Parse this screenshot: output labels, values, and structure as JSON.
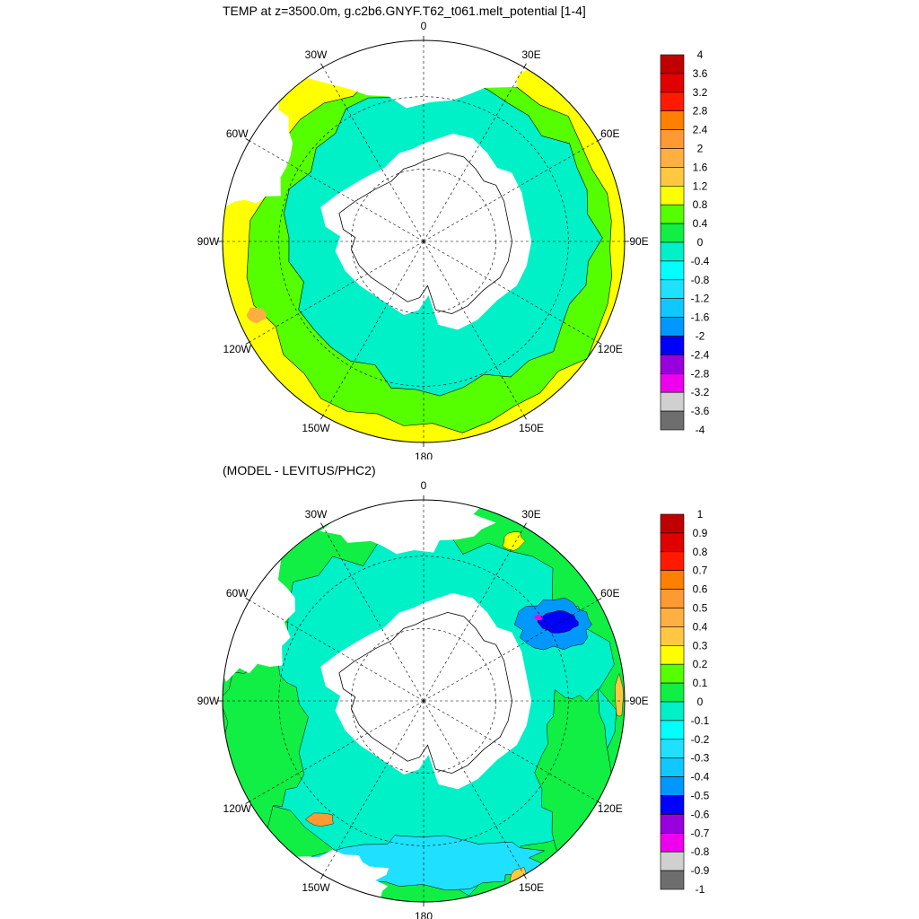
{
  "panels": [
    {
      "title": "TEMP at z=3500.0m, g.c2b6.GNYF.T62_t061.melt_potential [1-4]",
      "lon_labels": [
        "0",
        "30E",
        "60E",
        "90E",
        "120E",
        "150E",
        "180",
        "150W",
        "120W",
        "90W",
        "60W",
        "30W"
      ],
      "colorbar": {
        "labels": [
          "4",
          "3.6",
          "3.2",
          "2.8",
          "2.4",
          "2",
          "1.6",
          "1.2",
          "0.8",
          "0.4",
          "0",
          "-0.4",
          "-0.8",
          "-1.2",
          "-1.6",
          "-2",
          "-2.4",
          "-2.8",
          "-3.2",
          "-3.6",
          "-4"
        ],
        "colors": [
          "#c00000",
          "#e00000",
          "#ff1a00",
          "#ff8000",
          "#ff9a33",
          "#ffb040",
          "#ffc840",
          "#ffff00",
          "#55ff00",
          "#11ee44",
          "#00f0c8",
          "#00ffff",
          "#20e0ff",
          "#10c8ff",
          "#0098ff",
          "#0000ff",
          "#9900dd",
          "#ee00ee",
          "#d0d0d0",
          "#6e6e6e"
        ]
      }
    },
    {
      "title": "(MODEL - LEVITUS/PHC2)",
      "lon_labels": [
        "0",
        "30E",
        "60E",
        "90E",
        "120E",
        "150E",
        "180",
        "150W",
        "120W",
        "90W",
        "60W",
        "30W"
      ],
      "colorbar": {
        "labels": [
          "1",
          "0.9",
          "0.8",
          "0.7",
          "0.6",
          "0.5",
          "0.4",
          "0.3",
          "0.2",
          "0.1",
          "0",
          "-0.1",
          "-0.2",
          "-0.3",
          "-0.4",
          "-0.5",
          "-0.6",
          "-0.7",
          "-0.8",
          "-0.9",
          "-1"
        ],
        "colors": [
          "#c00000",
          "#e00000",
          "#ff1a00",
          "#ff8000",
          "#ff9a33",
          "#ffb040",
          "#ffc840",
          "#ffff00",
          "#55ff00",
          "#11ee44",
          "#00f0c8",
          "#00ffff",
          "#20e0ff",
          "#10c8ff",
          "#0098ff",
          "#0000ff",
          "#9900dd",
          "#ee00ee",
          "#d0d0d0",
          "#6e6e6e"
        ]
      }
    }
  ]
}
